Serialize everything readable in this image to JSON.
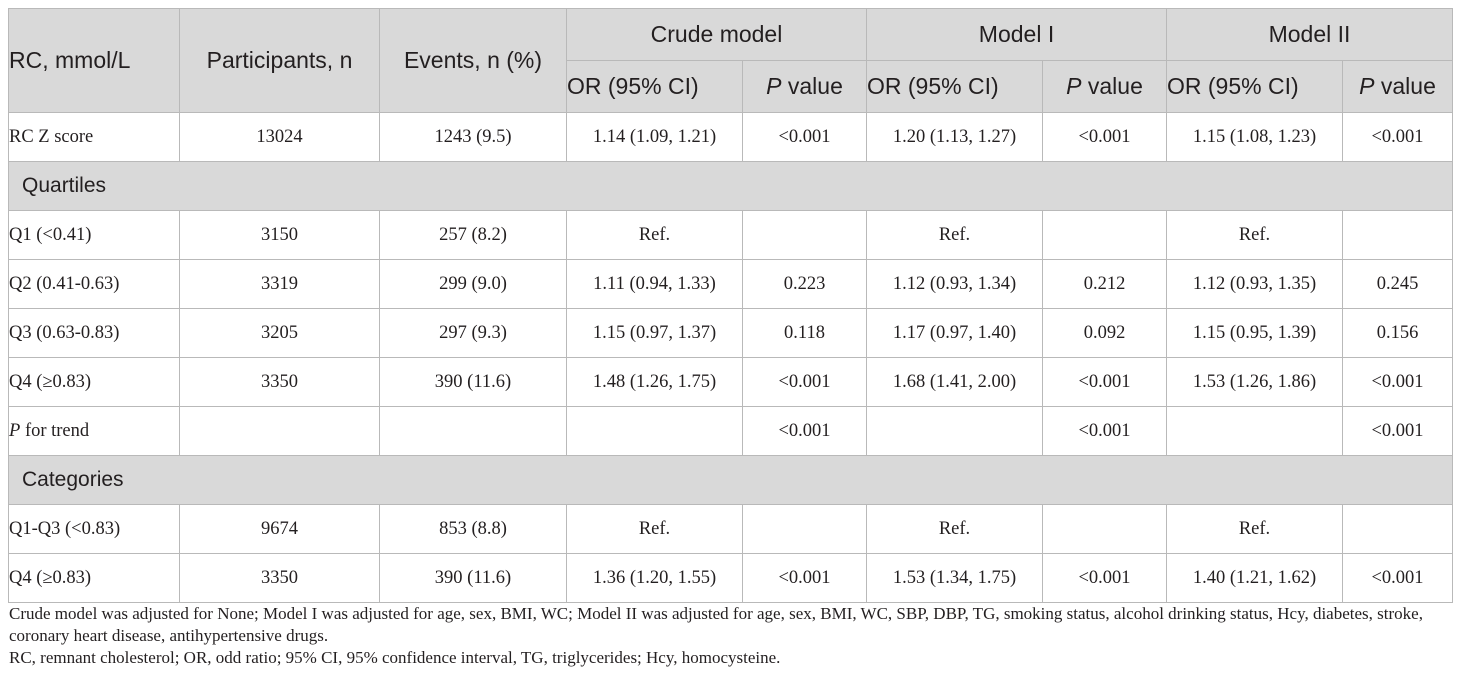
{
  "header": {
    "rc": "RC, mmol/L",
    "participants": "Participants, n",
    "events": "Events, n (%)",
    "groups": [
      "Crude model",
      "Model I",
      "Model II"
    ],
    "or_label": "OR (95% CI)",
    "p_italic": "P",
    "p_suffix": " value"
  },
  "rows": [
    {
      "label": "RC Z score",
      "n": "13024",
      "events": "1243 (9.5)",
      "c_or": "1.14 (1.09, 1.21)",
      "c_p": "<0.001",
      "m1_or": "1.20 (1.13, 1.27)",
      "m1_p": "<0.001",
      "m2_or": "1.15 (1.08, 1.23)",
      "m2_p": "<0.001"
    },
    {
      "section": "Quartiles"
    },
    {
      "label": "Q1 (<0.41)",
      "n": "3150",
      "events": "257 (8.2)",
      "c_or": "Ref.",
      "c_p": "",
      "m1_or": "Ref.",
      "m1_p": "",
      "m2_or": "Ref.",
      "m2_p": ""
    },
    {
      "label": "Q2 (0.41-0.63)",
      "n": "3319",
      "events": "299 (9.0)",
      "c_or": "1.11 (0.94, 1.33)",
      "c_p": "0.223",
      "m1_or": "1.12 (0.93, 1.34)",
      "m1_p": "0.212",
      "m2_or": "1.12 (0.93, 1.35)",
      "m2_p": "0.245"
    },
    {
      "label": "Q3 (0.63-0.83)",
      "n": "3205",
      "events": "297 (9.3)",
      "c_or": "1.15 (0.97, 1.37)",
      "c_p": "0.118",
      "m1_or": "1.17 (0.97, 1.40)",
      "m1_p": "0.092",
      "m2_or": "1.15 (0.95, 1.39)",
      "m2_p": "0.156"
    },
    {
      "label": "Q4 (≥0.83)",
      "n": "3350",
      "events": "390 (11.6)",
      "c_or": "1.48 (1.26, 1.75)",
      "c_p": "<0.001",
      "m1_or": "1.68 (1.41, 2.00)",
      "m1_p": "<0.001",
      "m2_or": "1.53 (1.26, 1.86)",
      "m2_p": "<0.001"
    },
    {
      "label_italic": "P",
      "label": " for trend",
      "n": "",
      "events": "",
      "c_or": "",
      "c_p": "<0.001",
      "m1_or": "",
      "m1_p": "<0.001",
      "m2_or": "",
      "m2_p": "<0.001"
    },
    {
      "section": "Categories"
    },
    {
      "label": "Q1-Q3 (<0.83)",
      "n": "9674",
      "events": "853 (8.8)",
      "c_or": "Ref.",
      "c_p": "",
      "m1_or": "Ref.",
      "m1_p": "",
      "m2_or": "Ref.",
      "m2_p": ""
    },
    {
      "label": "Q4 (≥0.83)",
      "n": "3350",
      "events": "390 (11.6)",
      "c_or": "1.36 (1.20, 1.55)",
      "c_p": "<0.001",
      "m1_or": "1.53 (1.34, 1.75)",
      "m1_p": "<0.001",
      "m2_or": "1.40 (1.21, 1.62)",
      "m2_p": "<0.001"
    }
  ],
  "footnotes": [
    "Crude model was adjusted for None; Model I was adjusted for age, sex, BMI, WC; Model II was adjusted for age, sex, BMI, WC, SBP, DBP, TG, smoking status, alcohol drinking status, Hcy, diabetes, stroke, coronary heart disease, antihypertensive drugs.",
    "RC, remnant cholesterol; OR, odd ratio; 95% CI, 95% confidence interval, TG, triglycerides; Hcy, homocysteine."
  ]
}
